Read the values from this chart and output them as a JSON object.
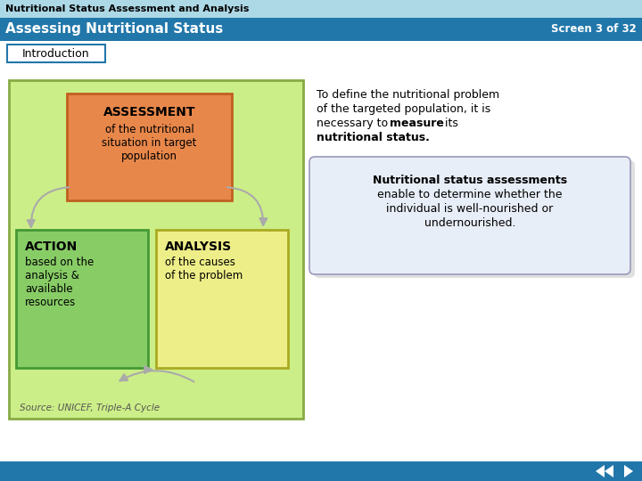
{
  "title_bar1_text": "Nutritional Status Assessment and Analysis",
  "title_bar1_bg": "#add8e6",
  "title_bar1_fg": "#000000",
  "title_bar2_text": "Assessing Nutritional Status",
  "title_bar2_screen": "Screen 3 of 32",
  "title_bar2_bg": "#2277aa",
  "title_bar2_fg": "#ffffff",
  "tab_text": "Introduction",
  "tab_border": "#2277aa",
  "tab_bg": "#ffffff",
  "main_bg": "#ffffff",
  "diagram_bg": "#ccee88",
  "diagram_border": "#88aa44",
  "assessment_bg": "#e8874a",
  "assessment_border": "#c06020",
  "action_bg": "#88cc66",
  "action_border": "#449933",
  "analysis_bg": "#eeee88",
  "analysis_border": "#aaaa22",
  "right_box_bg": "#e8eef8",
  "right_box_border": "#9999bb",
  "source_text": "Source: UNICEF, Triple-A Cycle",
  "footer_bg": "#2277aa"
}
